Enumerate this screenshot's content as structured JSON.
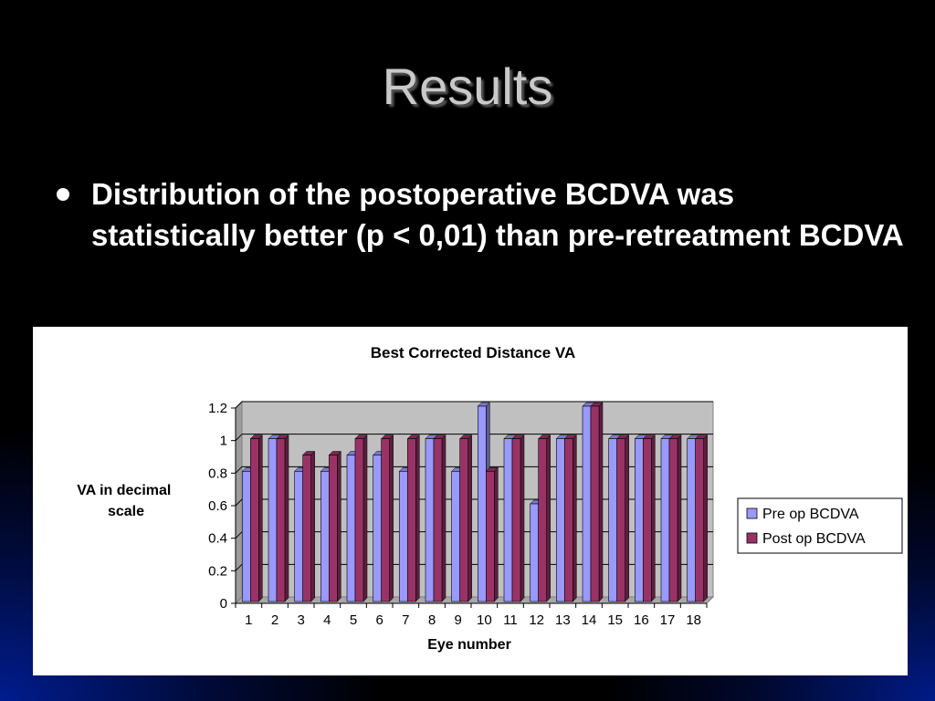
{
  "slide": {
    "title": "Results",
    "bullet": "Distribution of the postoperative BCDVA was statistically better (p < 0,01) than pre-retreatment BCDVA"
  },
  "chart_data": {
    "type": "bar",
    "title": "Best Corrected Distance VA",
    "xlabel": "Eye number",
    "ylabel_lines": [
      "VA in decimal",
      "scale"
    ],
    "ylim": [
      0,
      1.2
    ],
    "yticks": [
      "0",
      "0.2",
      "0.4",
      "0.6",
      "0.8",
      "1",
      "1.2"
    ],
    "categories": [
      "1",
      "2",
      "3",
      "4",
      "5",
      "6",
      "7",
      "8",
      "9",
      "10",
      "11",
      "12",
      "13",
      "14",
      "15",
      "16",
      "17",
      "18"
    ],
    "series": [
      {
        "name": "Pre op BCDVA",
        "color": "#9999ff",
        "values": [
          0.8,
          1.0,
          0.8,
          0.8,
          0.9,
          0.9,
          0.8,
          1.0,
          0.8,
          1.2,
          1.0,
          0.6,
          1.0,
          1.2,
          1.0,
          1.0,
          1.0,
          1.0
        ]
      },
      {
        "name": "Post op BCDVA",
        "color": "#993366",
        "values": [
          1.0,
          1.0,
          0.9,
          0.9,
          1.0,
          1.0,
          1.0,
          1.0,
          1.0,
          0.8,
          1.0,
          1.0,
          1.0,
          1.2,
          1.0,
          1.0,
          1.0,
          1.0
        ]
      }
    ],
    "grid": true,
    "plot_background": "#c0c0c0",
    "legend_position": "right"
  }
}
